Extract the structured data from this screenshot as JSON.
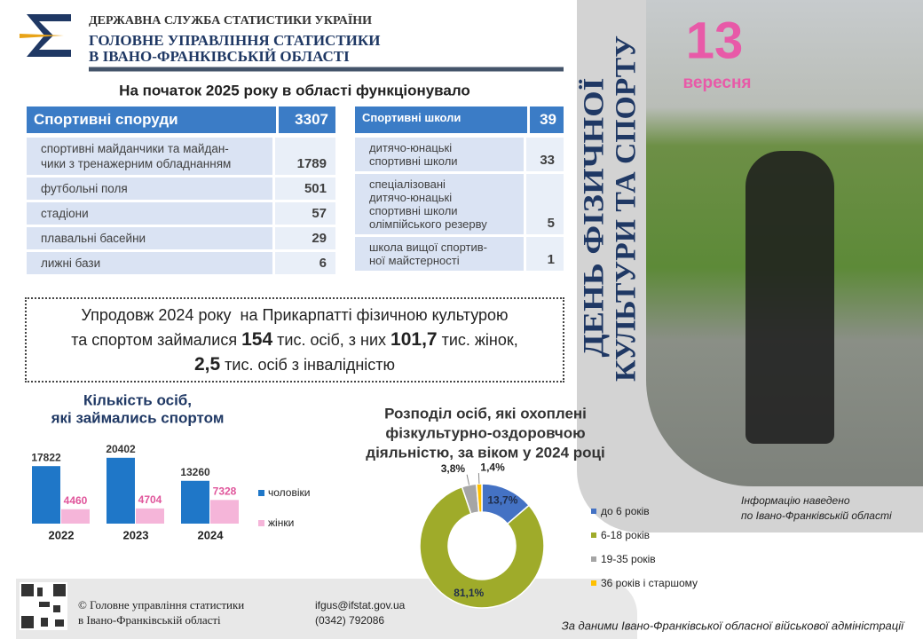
{
  "header": {
    "agency": "ДЕРЖАВНА СЛУЖБА СТАТИСТИКИ УКРАЇНИ",
    "office": [
      "ГОЛОВНЕ УПРАВЛІННЯ СТАТИСТИКИ",
      "В ІВАНО-ФРАНКІВСЬКІЙ ОБЛАСТІ"
    ]
  },
  "intro": "На початок 2025 року в області функціонувало",
  "facilities": {
    "header": [
      "Спортивні споруди",
      3307
    ],
    "rows": [
      [
        "спортивні майданчики та майдан-\nчики з тренажерним обладнанням",
        1789
      ],
      [
        "футбольні поля",
        501
      ],
      [
        "стадіони",
        57
      ],
      [
        "плавальні басейни",
        29
      ],
      [
        "лижні  бази",
        6
      ]
    ]
  },
  "schools": {
    "header": [
      "Спортивні школи",
      39
    ],
    "rows": [
      [
        "дитячо-юнацькі\nспортивні школи",
        33
      ],
      [
        "спеціалізовані\nдитячо-юнацькі\nспортивні школи\nолімпійського резерву",
        5
      ],
      [
        "школа вищої спортив-\nної майстерності",
        1
      ]
    ]
  },
  "summary": [
    [
      {
        "text": "Упродовж 2024 року  на Прикарпатті фізичною культурою"
      }
    ],
    [
      {
        "text": "та спортом займалися "
      },
      {
        "text": "154",
        "strong": true
      },
      {
        "text": " тис. осіб, з них "
      },
      {
        "text": "101,7",
        "strong": true
      },
      {
        "text": " тис. жінок,"
      }
    ],
    [
      {
        "text": "2,5",
        "strong": true
      },
      {
        "text": " тис. осіб з інвалідністю"
      }
    ]
  ],
  "bar_chart": {
    "type": "bar",
    "title": [
      "Кількість осіб,",
      "які займались спортом"
    ],
    "categories": [
      "2022",
      "2023",
      "2024"
    ],
    "series": [
      {
        "name": "чоловіки",
        "color": "#1f77c8",
        "label_color": "#333333",
        "values": [
          17822,
          20402,
          13260
        ]
      },
      {
        "name": "жінки",
        "color": "#f5b5d9",
        "label_color": "#e0559b",
        "values": [
          4460,
          4704,
          7328
        ]
      }
    ],
    "ylim": [
      0,
      22000
    ]
  },
  "pie_chart": {
    "type": "donut",
    "title": [
      "Розподіл осіб, які охоплені",
      "фізкультурно-оздоровчою",
      "діяльністю, за віком у 2024 році"
    ],
    "categories": [
      "до 6 років",
      "6-18 років",
      "19-35 років",
      "36 років і старшому"
    ],
    "values": [
      13.7,
      81.1,
      3.8,
      1.4
    ],
    "value_labels": [
      "13,7%",
      "81,1%",
      "3,8%",
      "1,4%"
    ],
    "colors": [
      "#4472c4",
      "#9fab2a",
      "#a5a5a5",
      "#ffc000"
    ]
  },
  "event": {
    "day": 13,
    "month": "вересня",
    "title": [
      "ДЕНЬ ФІЗИЧНОЇ",
      "КУЛЬТУРИ ТА СПОРТУ"
    ]
  },
  "note": [
    "Інформацію  наведено",
    "по Івано-Франківській  області"
  ],
  "footer": {
    "org": [
      "© Головне управління  статистики",
      "в Івано-Франківській  області"
    ],
    "email": "ifgus@ifstat.gov.ua",
    "phone": "(0342) 792086",
    "source": "За даними Івано-Франківської обласної військової адміністрації"
  }
}
